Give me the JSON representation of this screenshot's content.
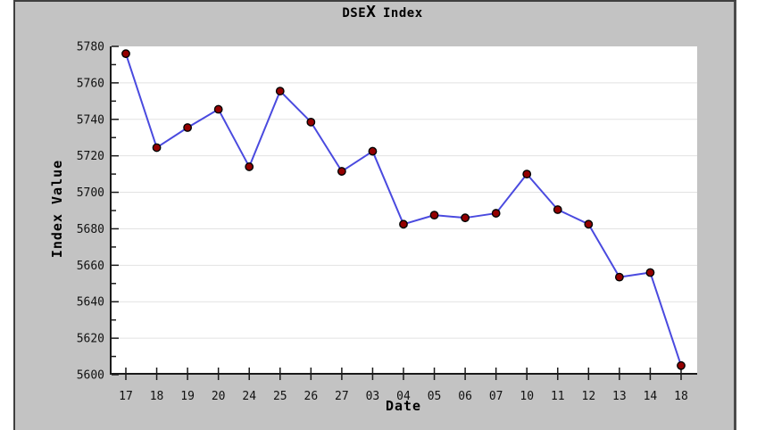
{
  "title_parts": {
    "prefix": "DSE",
    "highlight": "X",
    "suffix": "Index"
  },
  "chart_data": {
    "type": "line",
    "title": "DSEX Index",
    "xlabel": "Date",
    "ylabel": "Index Value",
    "categories": [
      "17",
      "18",
      "19",
      "20",
      "24",
      "25",
      "26",
      "27",
      "03",
      "04",
      "05",
      "06",
      "07",
      "10",
      "11",
      "12",
      "13",
      "14",
      "18"
    ],
    "values": [
      5776,
      5724.5,
      5735.5,
      5745.5,
      5714,
      5755.5,
      5738.5,
      5711.5,
      5722.5,
      5682.5,
      5687.5,
      5686,
      5688.5,
      5710,
      5690.5,
      5682.5,
      5653.5,
      5656,
      5605
    ],
    "ylim": [
      5600,
      5780
    ],
    "yticks": [
      5600,
      5620,
      5640,
      5660,
      5680,
      5700,
      5720,
      5740,
      5760,
      5780
    ],
    "ytick_step": 20,
    "ytick_minor_step": 10,
    "grid": "horizontal",
    "legend": "none",
    "colors": {
      "background": "#c3c3c3",
      "plot_background": "#ffffff",
      "grid_color": "#e2e2e2",
      "axis_color": "#1a1a1a",
      "text_color": "#111111",
      "line_color": "#4a4adf",
      "marker_color": "#940000",
      "marker_outline": "#000000"
    }
  }
}
